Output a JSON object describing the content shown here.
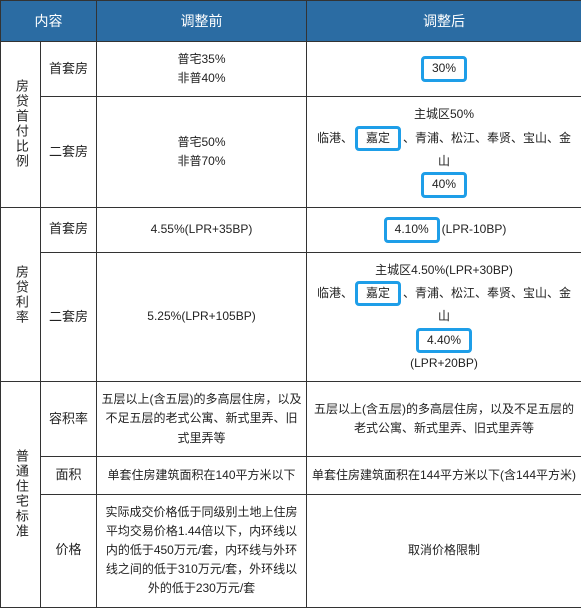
{
  "header": {
    "col1": "内容",
    "col2": "调整前",
    "col3": "调整后"
  },
  "sections": [
    {
      "group_label": "房贷首付比例",
      "rows": [
        {
          "sub": "首套房",
          "before": "普宅35%\n非普40%",
          "after_parts": [
            {
              "hl": true,
              "text": "30%"
            }
          ]
        },
        {
          "sub": "二套房",
          "before": "普宅50%\n非普70%",
          "after_lines": [
            [
              {
                "text": "主城区50%"
              }
            ],
            [
              {
                "text": "临港、"
              },
              {
                "hl": true,
                "text": "嘉定"
              },
              {
                "text": "、青浦、松江、奉贤、宝山、金山"
              }
            ],
            [
              {
                "hl": true,
                "text": "40%"
              }
            ]
          ]
        }
      ]
    },
    {
      "group_label": "房贷利率",
      "rows": [
        {
          "sub": "首套房",
          "before": "4.55%(LPR+35BP)",
          "after_parts": [
            {
              "hl": true,
              "text": "4.10%"
            },
            {
              "text": "(LPR-10BP)"
            }
          ]
        },
        {
          "sub": "二套房",
          "before": "5.25%(LPR+105BP)",
          "after_lines": [
            [
              {
                "text": "主城区4.50%(LPR+30BP)"
              }
            ],
            [
              {
                "text": "临港、"
              },
              {
                "hl": true,
                "text": "嘉定"
              },
              {
                "text": "、青浦、松江、奉贤、宝山、金山"
              }
            ],
            [
              {
                "hl": true,
                "text": "4.40%"
              }
            ],
            [
              {
                "text": "(LPR+20BP)"
              }
            ]
          ]
        }
      ]
    },
    {
      "group_label": "普通住宅标准",
      "rows": [
        {
          "sub": "容积率",
          "before": "五层以上(含五层)的多高层住房，以及不足五层的老式公寓、新式里弄、旧式里弄等",
          "after_text": "五层以上(含五层)的多高层住房，以及不足五层的老式公寓、新式里弄、旧式里弄等"
        },
        {
          "sub": "面积",
          "before": "单套住房建筑面积在140平方米以下",
          "after_text": "单套住房建筑面积在144平方米以下(含144平方米)"
        },
        {
          "sub": "价格",
          "before": "实际成交价格低于同级别土地上住房平均交易价格1.44倍以下，内环线以内的低于450万元/套，内环线与外环线之间的低于310万元/套，外环线以外的低于230万元/套",
          "after_text": "取消价格限制"
        }
      ]
    }
  ],
  "colors": {
    "header_bg": "#2b6ca3",
    "header_fg": "#ffffff",
    "border": "#333333",
    "highlight_border": "#1e9ee8",
    "text": "#222222",
    "bg": "#ffffff"
  }
}
